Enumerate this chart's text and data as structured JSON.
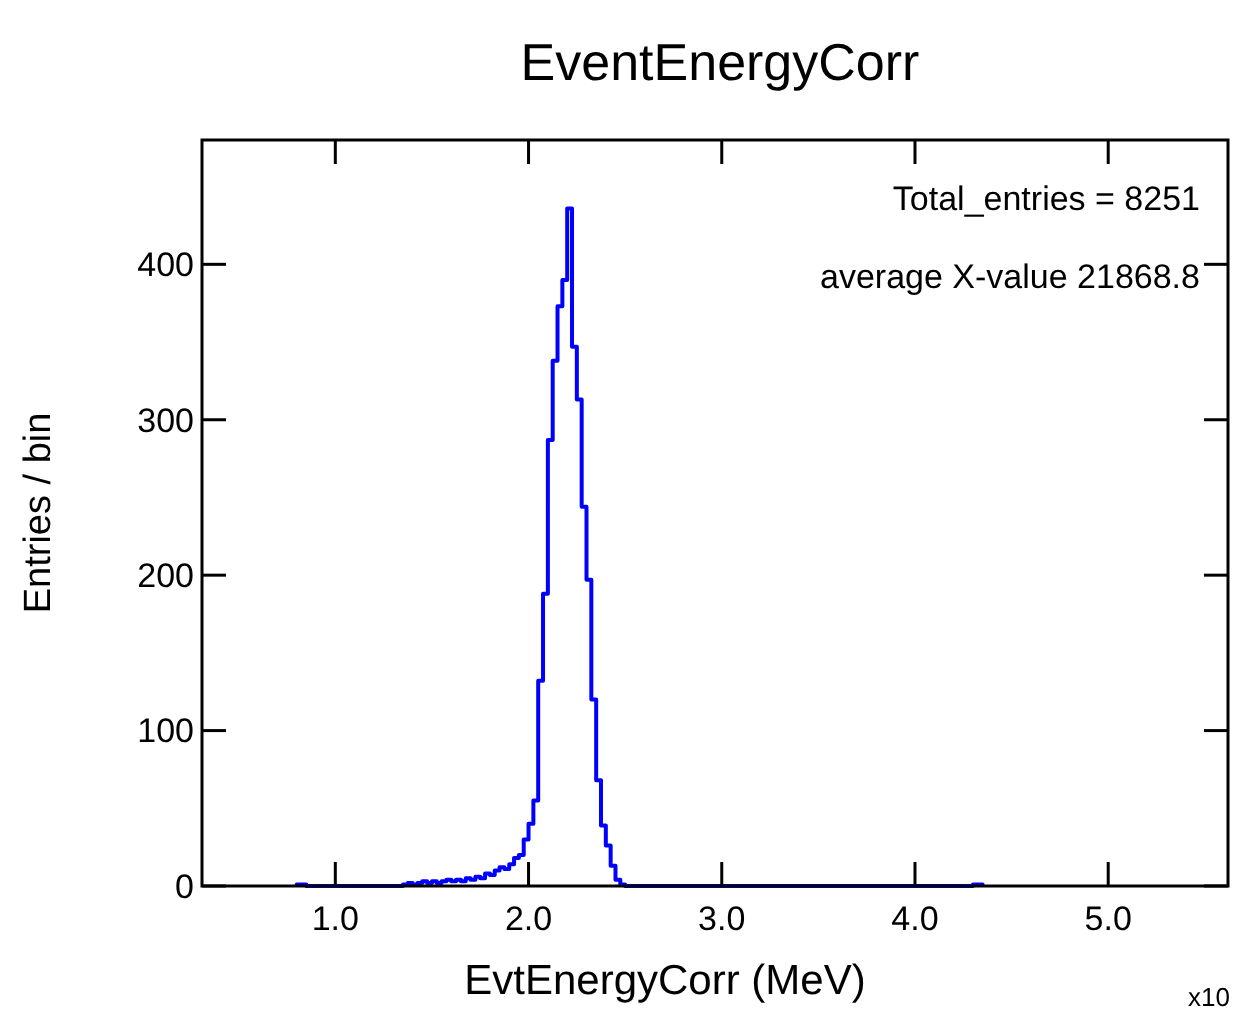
{
  "chart_data": {
    "type": "histogram",
    "title": "EventEnergyCorr",
    "xlabel": "EvtEnergyCorr (MeV)",
    "ylabel": "Entries / bin",
    "annotations": [
      "Total_entries = 8251",
      "average X-value 21868.8",
      "x10"
    ],
    "color": "#0000ff",
    "bins": [
      0.8,
      0.85,
      1.35,
      1.375,
      1.4,
      1.425,
      1.45,
      1.475,
      1.5,
      1.525,
      1.55,
      1.575,
      1.6,
      1.625,
      1.65,
      1.675,
      1.7,
      1.725,
      1.75,
      1.775,
      1.8,
      1.825,
      1.85,
      1.875,
      1.9,
      1.925,
      1.95,
      1.975,
      2.0,
      2.025,
      2.05,
      2.075,
      2.1,
      2.125,
      2.15,
      2.175,
      2.2,
      2.225,
      2.25,
      2.275,
      2.3,
      2.325,
      2.35,
      2.375,
      2.4,
      2.425,
      2.45,
      2.475,
      2.5,
      4.3,
      4.35
    ],
    "values": [
      1,
      0,
      1,
      2,
      1,
      2,
      3,
      2,
      3,
      2,
      3,
      4,
      3,
      4,
      3,
      5,
      4,
      6,
      5,
      8,
      7,
      10,
      12,
      11,
      14,
      18,
      20,
      30,
      40,
      55,
      132,
      188,
      287,
      338,
      373,
      390,
      436,
      347,
      313,
      244,
      197,
      120,
      68,
      39,
      26,
      13,
      4,
      1,
      0,
      1
    ],
    "xlim": [
      0.31,
      5.62
    ],
    "xticks": [
      {
        "value": 1,
        "label": "1.0"
      },
      {
        "value": 2,
        "label": "2.0"
      },
      {
        "value": 3,
        "label": "3.0"
      },
      {
        "value": 4,
        "label": "4.0"
      },
      {
        "value": 5,
        "label": "5.0"
      }
    ],
    "ylim": [
      0,
      480
    ],
    "yticks": [
      0,
      100,
      200,
      300,
      400
    ]
  }
}
